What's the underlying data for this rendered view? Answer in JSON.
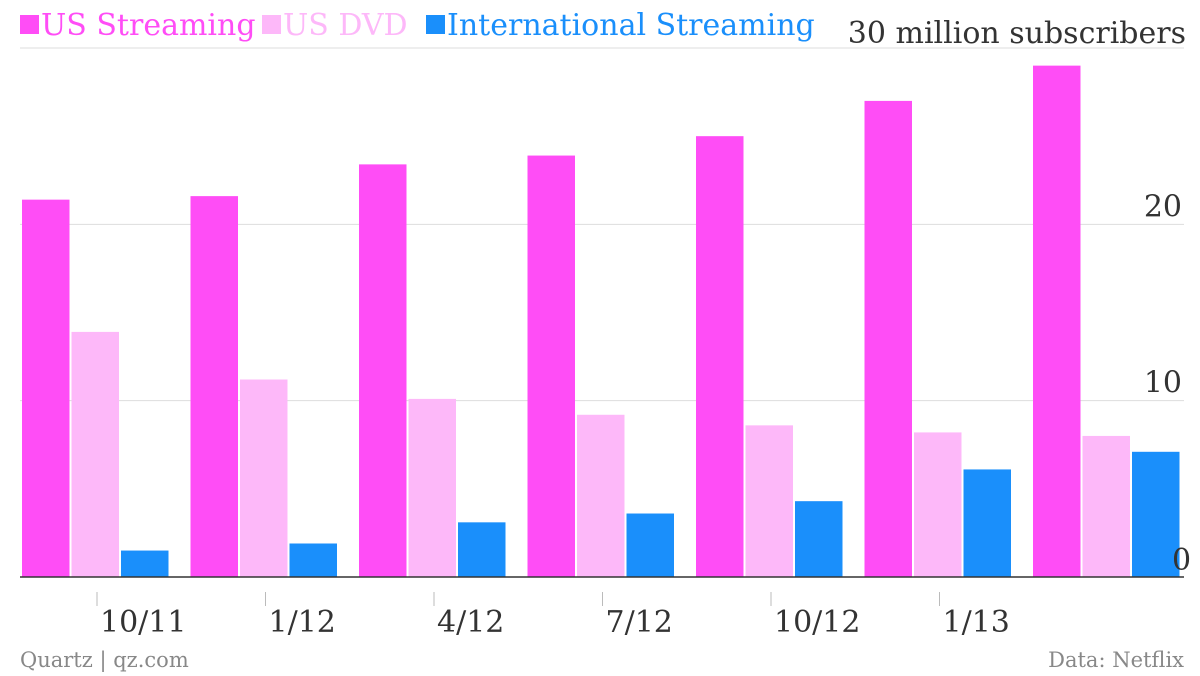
{
  "chart_data": {
    "type": "bar",
    "categories": [
      "10/11",
      "1/12",
      "4/12",
      "7/12",
      "10/12",
      "1/13",
      ""
    ],
    "series": [
      {
        "name": "US Streaming",
        "color": "#ff4df6",
        "values": [
          21.4,
          21.6,
          23.4,
          23.9,
          25.0,
          27.0,
          29.0
        ]
      },
      {
        "name": "US DVD",
        "color": "#fdb8f9",
        "values": [
          13.9,
          11.2,
          10.1,
          9.2,
          8.6,
          8.2,
          8.0
        ]
      },
      {
        "name": "International Streaming",
        "color": "#1a8ffb",
        "values": [
          1.5,
          1.9,
          3.1,
          3.6,
          4.3,
          6.1,
          7.1
        ]
      }
    ],
    "y_unit_label": "30 million subscribers",
    "y_ticks": [
      {
        "value": 10,
        "label": "10"
      },
      {
        "value": 20,
        "label": "20"
      },
      {
        "value": 30,
        "label": "30"
      }
    ],
    "y_zero_label": "0",
    "ylim": [
      0,
      30
    ],
    "grid": true,
    "legend_position": "top-left",
    "source_left": "Quartz | qz.com",
    "source_right": "Data: Netflix"
  }
}
